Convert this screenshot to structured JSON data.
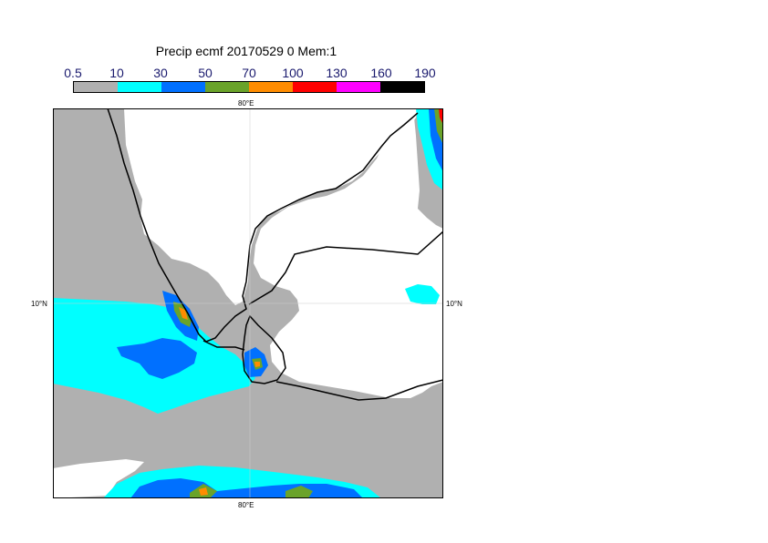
{
  "title": "Precip ecmf 20170529 0 Mem:1",
  "legend": {
    "ticks": [
      "0.5",
      "10",
      "30",
      "50",
      "70",
      "100",
      "130",
      "160",
      "190"
    ],
    "colors": [
      "#b0b0b0",
      "#00ffff",
      "#0070ff",
      "#6aa32a",
      "#ff8c00",
      "#ff0000",
      "#ff00ff",
      "#000000"
    ]
  },
  "map": {
    "lon_label_top": "80°E",
    "lon_label_bottom": "80°E",
    "lat_label_left": "10°N",
    "lat_label_right": "10°N",
    "colors": {
      "land": "#ffffff",
      "gray": "#b0b0b0",
      "cyan": "#00ffff",
      "blue": "#0070ff",
      "green": "#6aa32a",
      "orange": "#ff8c00",
      "red": "#ff0000"
    }
  }
}
